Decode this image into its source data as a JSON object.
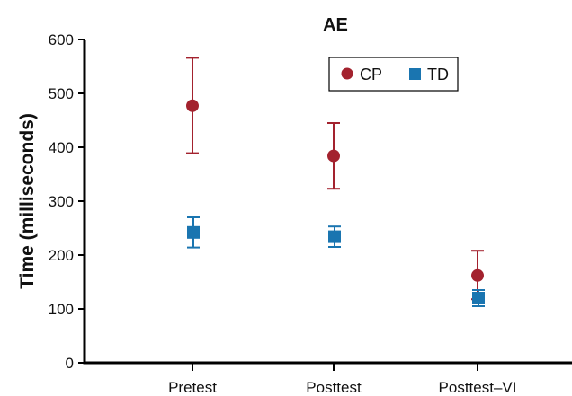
{
  "chart_data": {
    "type": "scatter",
    "title": "AE",
    "xlabel": "",
    "ylabel": "Time (milliseconds)",
    "categories": [
      "Pretest",
      "Posttest",
      "Posttest–VI"
    ],
    "ylim": [
      0,
      600
    ],
    "yticks": [
      0,
      100,
      200,
      300,
      400,
      500,
      600
    ],
    "grid": false,
    "legend_position": "top-right",
    "series": [
      {
        "name": "CP",
        "marker": "circle",
        "color": "#a3222e",
        "values": [
          477,
          384,
          162
        ],
        "err_low": [
          389,
          323,
          118
        ],
        "err_high": [
          566,
          445,
          208
        ]
      },
      {
        "name": "TD",
        "marker": "square",
        "color": "#1a75b0",
        "values": [
          242,
          234,
          120
        ],
        "err_low": [
          214,
          215,
          105
        ],
        "err_high": [
          270,
          253,
          135
        ]
      }
    ]
  }
}
